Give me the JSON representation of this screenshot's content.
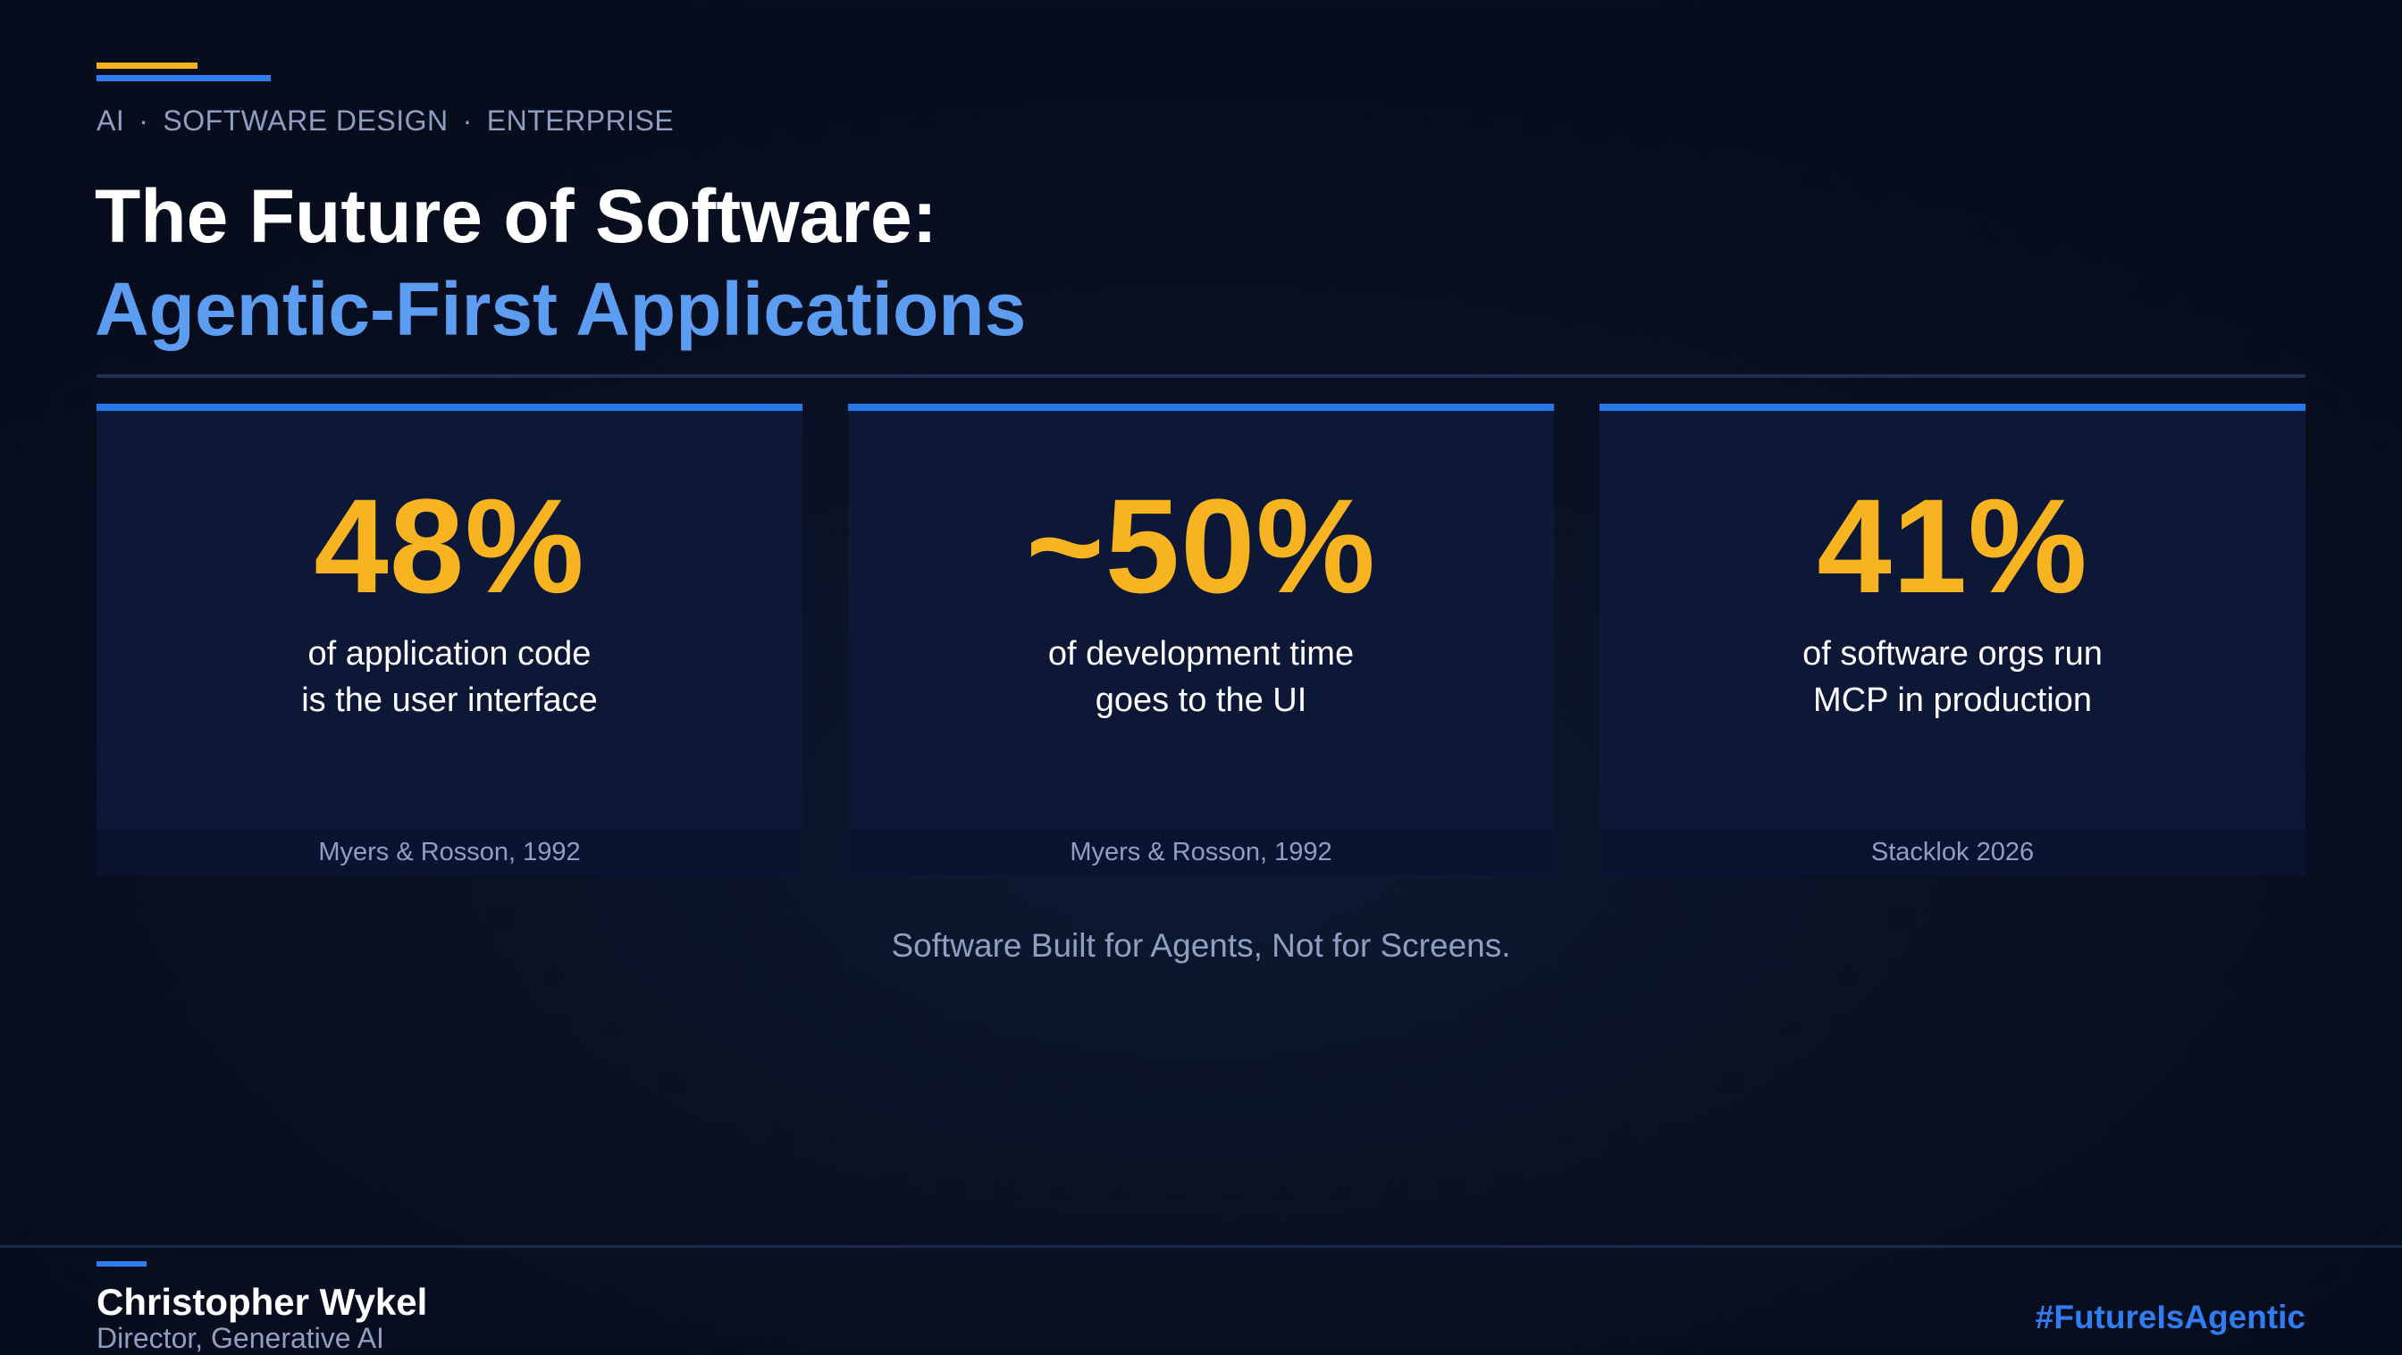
{
  "colors": {
    "background": "#0a1226",
    "accent_gold": "#f5b21e",
    "accent_blue": "#2f7df0",
    "title_highlight": "#5c9df2",
    "stat_value": "#f7b320",
    "muted_text": "#8f9fc1"
  },
  "header": {
    "tags": [
      "AI",
      "SOFTWARE DESIGN",
      "ENTERPRISE"
    ],
    "separator": "·",
    "title_line1": "The Future of Software:",
    "title_line2": "Agentic-First Applications"
  },
  "stats": [
    {
      "value": "48%",
      "desc_line1": "of application code",
      "desc_line2": "is the user interface",
      "source": "Myers & Rosson, 1992"
    },
    {
      "value": "~50%",
      "desc_line1": "of development time",
      "desc_line2": "goes to the UI",
      "source": "Myers & Rosson, 1992"
    },
    {
      "value": "41%",
      "desc_line1": "of software orgs run",
      "desc_line2": "MCP in production",
      "source": "Stacklok 2026"
    }
  ],
  "tagline": "Software Built for Agents, Not for Screens.",
  "footer": {
    "author": "Christopher Wykel",
    "role": "Director, Generative AI",
    "hashtag": "#FutureIsAgentic"
  }
}
